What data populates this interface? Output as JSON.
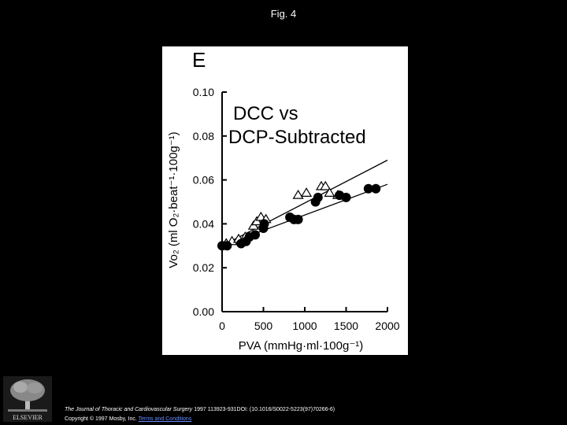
{
  "slide": {
    "title": "Fig. 4"
  },
  "chart_data": {
    "type": "scatter",
    "panel_label": "E",
    "title": "DCC vs DCP-Subtracted",
    "title_lines": [
      "DCC vs",
      "DCP-Subtracted"
    ],
    "xlabel": "PVA (mmHg·ml·100g⁻¹)",
    "ylabel": "Vo₂ (ml O₂·beat⁻¹·100g⁻¹)",
    "xlim": [
      0,
      2000
    ],
    "ylim": [
      0,
      0.1
    ],
    "x_ticks": [
      0,
      500,
      1000,
      1500,
      2000
    ],
    "x_tick_labels": [
      "0",
      "500",
      "1000",
      "1500",
      "2000"
    ],
    "y_ticks": [
      0,
      0.02,
      0.04,
      0.06,
      0.08,
      0.1
    ],
    "y_tick_labels": [
      "0.00",
      "0.02",
      "0.04",
      "0.06",
      "0.08",
      "0.10"
    ],
    "grid": false,
    "series": [
      {
        "marker": "open-triangle",
        "x": [
          50,
          120,
          200,
          280,
          380,
          420,
          470,
          530,
          920,
          1020,
          1200,
          1250,
          1300,
          1400
        ],
        "y": [
          0.031,
          0.032,
          0.033,
          0.034,
          0.039,
          0.041,
          0.043,
          0.042,
          0.053,
          0.054,
          0.057,
          0.057,
          0.054,
          0.053
        ],
        "fit": {
          "x": [
            0,
            2000
          ],
          "y": [
            0.03,
            0.069
          ]
        }
      },
      {
        "marker": "filled-circle",
        "x": [
          0,
          60,
          230,
          290,
          330,
          400,
          500,
          510,
          820,
          870,
          920,
          1130,
          1160,
          1420,
          1500,
          1770,
          1860
        ],
        "y": [
          0.03,
          0.03,
          0.031,
          0.032,
          0.034,
          0.035,
          0.038,
          0.04,
          0.043,
          0.042,
          0.042,
          0.05,
          0.052,
          0.053,
          0.052,
          0.056,
          0.056
        ],
        "fit": {
          "x": [
            0,
            2000
          ],
          "y": [
            0.03,
            0.058
          ]
        }
      }
    ],
    "colors": {
      "markers": "#000000",
      "background": "#ffffff"
    }
  },
  "footer": {
    "publisher": "ELSEVIER",
    "citation_journal": "The Journal of Thoracic and Cardiovascular Surgery",
    "citation_rest": " 1997 113923-931DOI: (10.1016/S0022-5223(97)70266-6)",
    "copyright": "Copyright © 1997 Mosby, Inc. ",
    "terms_link": "Terms and Conditions"
  }
}
